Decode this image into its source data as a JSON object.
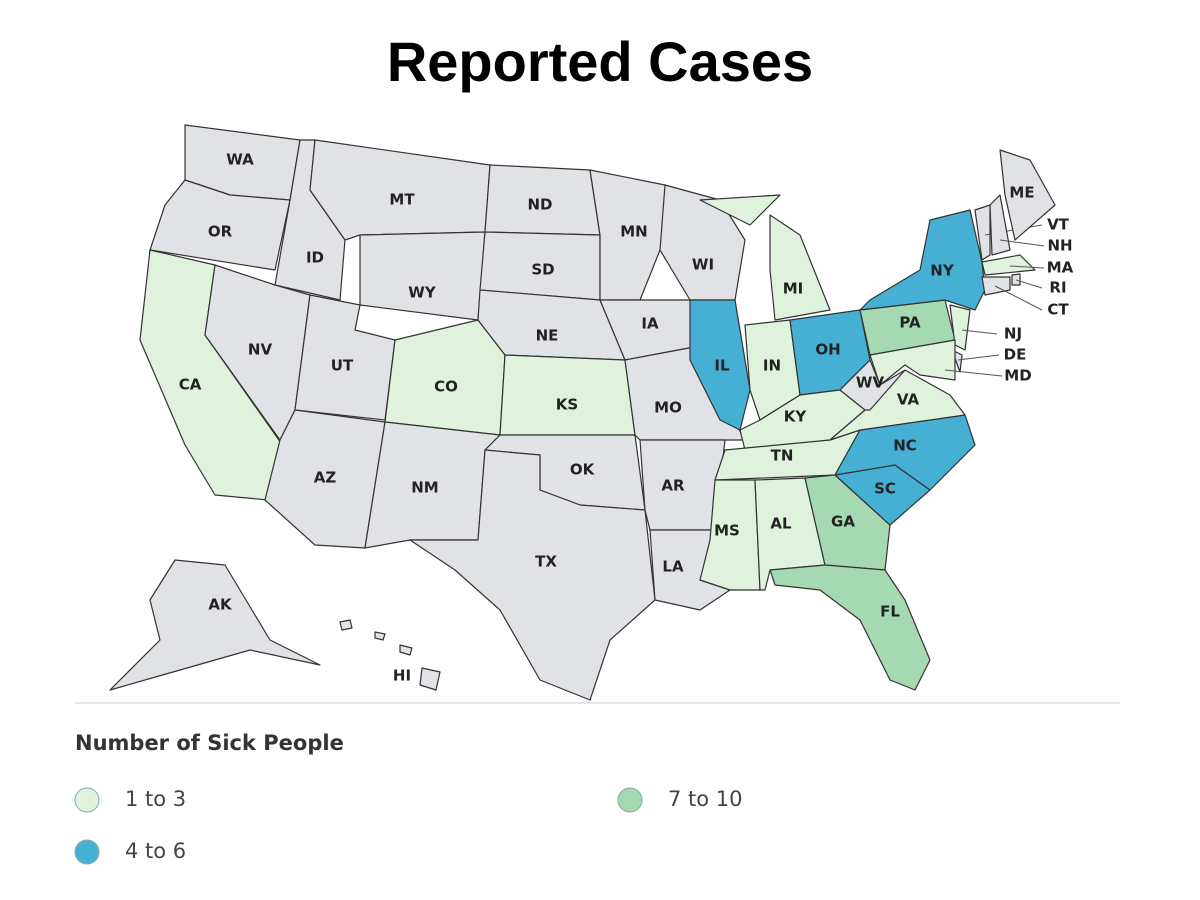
{
  "title": "Reported Cases",
  "states": [
    {
      "label": "WA",
      "color": "#e1e2e5"
    },
    {
      "label": "OR",
      "color": "#e1e2e5"
    },
    {
      "label": "CA",
      "color": "#dff2dc"
    },
    {
      "label": "ID",
      "color": "#e1e2e5"
    },
    {
      "label": "NV",
      "color": "#e1e2e5"
    },
    {
      "label": "MT",
      "color": "#e1e2e5"
    },
    {
      "label": "WY",
      "color": "#e1e2e5"
    },
    {
      "label": "UT",
      "color": "#e1e2e5"
    },
    {
      "label": "CO",
      "color": "#dff2dc"
    },
    {
      "label": "AZ",
      "color": "#e1e2e5"
    },
    {
      "label": "NM",
      "color": "#e1e2e5"
    },
    {
      "label": "ND",
      "color": "#e1e2e5"
    },
    {
      "label": "SD",
      "color": "#e1e2e5"
    },
    {
      "label": "NE",
      "color": "#e1e2e5"
    },
    {
      "label": "KS",
      "color": "#dff2dc"
    },
    {
      "label": "OK",
      "color": "#e1e2e5"
    },
    {
      "label": "TX",
      "color": "#e1e2e5"
    },
    {
      "label": "MN",
      "color": "#e1e2e5"
    },
    {
      "label": "IA",
      "color": "#e1e2e5"
    },
    {
      "label": "MO",
      "color": "#e1e2e5"
    },
    {
      "label": "AR",
      "color": "#e1e2e5"
    },
    {
      "label": "LA",
      "color": "#e1e2e5"
    },
    {
      "label": "WI",
      "color": "#e1e2e5"
    },
    {
      "label": "IL",
      "color": "#45b0d4"
    },
    {
      "label": "MI",
      "color": "#dff2dc"
    },
    {
      "label": "IN",
      "color": "#dff2dc"
    },
    {
      "label": "OH",
      "color": "#45b0d4"
    },
    {
      "label": "KY",
      "color": "#dff2dc"
    },
    {
      "label": "TN",
      "color": "#dff2dc"
    },
    {
      "label": "MS",
      "color": "#dff2dc"
    },
    {
      "label": "AL",
      "color": "#dff2dc"
    },
    {
      "label": "GA",
      "color": "#a4d9b2"
    },
    {
      "label": "FL",
      "color": "#a4d9b2"
    },
    {
      "label": "SC",
      "color": "#45b0d4"
    },
    {
      "label": "NC",
      "color": "#45b0d4"
    },
    {
      "label": "VA",
      "color": "#dff2dc"
    },
    {
      "label": "WV",
      "color": "#e1e2e5"
    },
    {
      "label": "PA",
      "color": "#a4d9b2"
    },
    {
      "label": "NY",
      "color": "#45b0d4"
    },
    {
      "label": "NJ",
      "color": "#dff2dc"
    },
    {
      "label": "DE",
      "color": "#e1e2e5"
    },
    {
      "label": "MD",
      "color": "#dff2dc"
    },
    {
      "label": "VT",
      "color": "#e1e2e5"
    },
    {
      "label": "NH",
      "color": "#e1e2e5"
    },
    {
      "label": "ME",
      "color": "#e1e2e5"
    },
    {
      "label": "MA",
      "color": "#dff2dc"
    },
    {
      "label": "RI",
      "color": "#e1e2e5"
    },
    {
      "label": "CT",
      "color": "#e1e2e5"
    },
    {
      "label": "AK",
      "color": "#e1e2e5"
    },
    {
      "label": "HI",
      "color": "#e1e2e5"
    }
  ],
  "legend": {
    "title": "Number of Sick People",
    "items": [
      {
        "label": "1 to 3",
        "color": "#dff2dc"
      },
      {
        "label": "4 to 6",
        "color": "#45b0d4"
      },
      {
        "label": "7 to 10",
        "color": "#a4d9b2"
      }
    ]
  }
}
